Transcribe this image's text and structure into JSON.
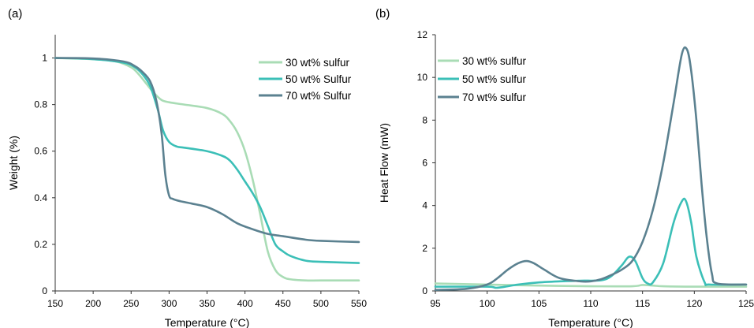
{
  "chart_data": [
    {
      "panel_label": "(a)",
      "type": "line",
      "xlabel": "Temperature (°C)",
      "ylabel": "Weight (%)",
      "xlim": [
        150,
        550
      ],
      "ylim": [
        0,
        1.1
      ],
      "xticks": [
        150,
        200,
        250,
        300,
        350,
        400,
        450,
        500,
        550
      ],
      "yticks": [
        0,
        0.2,
        0.4,
        0.6,
        0.8,
        1
      ],
      "ytick_labels": [
        "0",
        "0.2",
        "0.4",
        "0.6",
        "0.8",
        "1"
      ],
      "grid": false,
      "legend_position": "top-right",
      "series": [
        {
          "name": "30 wt% sulfur",
          "color": "#a9dcb5",
          "x": [
            150,
            200,
            230,
            250,
            260,
            270,
            280,
            290,
            300,
            320,
            350,
            370,
            380,
            390,
            400,
            410,
            420,
            430,
            440,
            450,
            460,
            480,
            500,
            550
          ],
          "y": [
            1.0,
            0.995,
            0.985,
            0.96,
            0.93,
            0.89,
            0.85,
            0.82,
            0.81,
            0.8,
            0.785,
            0.76,
            0.73,
            0.68,
            0.6,
            0.48,
            0.33,
            0.17,
            0.09,
            0.06,
            0.05,
            0.045,
            0.045,
            0.045
          ]
        },
        {
          "name": "50 wt% Sulfur",
          "color": "#3bbfb7",
          "x": [
            150,
            200,
            240,
            255,
            265,
            275,
            285,
            292,
            300,
            310,
            320,
            350,
            370,
            380,
            390,
            400,
            410,
            420,
            430,
            440,
            450,
            460,
            480,
            500,
            550
          ],
          "y": [
            1.0,
            0.995,
            0.98,
            0.96,
            0.93,
            0.88,
            0.78,
            0.69,
            0.64,
            0.62,
            0.615,
            0.6,
            0.58,
            0.56,
            0.52,
            0.47,
            0.42,
            0.36,
            0.28,
            0.2,
            0.17,
            0.15,
            0.13,
            0.125,
            0.12
          ]
        },
        {
          "name": "70 wt% Sulfur",
          "color": "#5b8190",
          "x": [
            150,
            200,
            240,
            255,
            265,
            275,
            283,
            290,
            295,
            300,
            305,
            315,
            330,
            350,
            370,
            390,
            410,
            430,
            450,
            480,
            500,
            550
          ],
          "y": [
            1.0,
            0.998,
            0.985,
            0.965,
            0.94,
            0.9,
            0.82,
            0.68,
            0.5,
            0.41,
            0.395,
            0.385,
            0.375,
            0.36,
            0.33,
            0.29,
            0.265,
            0.245,
            0.235,
            0.22,
            0.215,
            0.21
          ]
        }
      ]
    },
    {
      "panel_label": "(b)",
      "type": "line",
      "xlabel": "Temperature (°C)",
      "ylabel": "Heat Flow (mW)",
      "xlim": [
        95,
        125
      ],
      "ylim": [
        0,
        12
      ],
      "xticks": [
        95,
        100,
        105,
        110,
        115,
        120,
        125
      ],
      "yticks": [
        0,
        2,
        4,
        6,
        8,
        10,
        12
      ],
      "ytick_labels": [
        "0",
        "2",
        "4",
        "6",
        "8",
        "10",
        "12"
      ],
      "grid": false,
      "legend_position": "top-left",
      "series": [
        {
          "name": "30 wt% sulfur",
          "color": "#a9dcb5",
          "x": [
            95,
            100,
            105,
            110,
            114,
            115,
            116,
            117,
            120,
            125
          ],
          "y": [
            0.35,
            0.3,
            0.25,
            0.22,
            0.22,
            0.28,
            0.25,
            0.22,
            0.2,
            0.2
          ]
        },
        {
          "name": "50 wt% sulfur",
          "color": "#3bbfb7",
          "x": [
            95,
            100,
            101,
            103,
            105,
            107,
            109,
            111,
            112,
            113,
            113.7,
            114.3,
            115,
            115.5,
            116,
            117,
            118,
            118.8,
            119.2,
            119.7,
            120.2,
            121,
            121.5,
            125
          ],
          "y": [
            0.2,
            0.2,
            0.15,
            0.3,
            0.4,
            0.45,
            0.48,
            0.5,
            0.7,
            1.2,
            1.6,
            1.4,
            0.6,
            0.35,
            0.4,
            1.3,
            3.2,
            4.2,
            4.2,
            3.2,
            1.6,
            0.4,
            0.3,
            0.3
          ]
        },
        {
          "name": "70 wt% sulfur",
          "color": "#5b8190",
          "x": [
            95,
            98,
            100,
            101,
            102,
            103,
            103.8,
            104.5,
            105.5,
            107,
            109,
            110,
            111,
            112,
            113,
            114,
            115,
            116,
            117,
            118,
            118.8,
            119.3,
            119.7,
            120.2,
            120.7,
            121.2,
            121.7,
            122.2,
            125
          ],
          "y": [
            0.05,
            0.1,
            0.3,
            0.6,
            1.0,
            1.3,
            1.4,
            1.3,
            1.0,
            0.6,
            0.45,
            0.45,
            0.55,
            0.75,
            1.0,
            1.4,
            2.3,
            3.8,
            6.0,
            8.8,
            11.1,
            11.3,
            10.3,
            8.0,
            5.0,
            2.5,
            0.8,
            0.35,
            0.3
          ]
        }
      ]
    }
  ]
}
